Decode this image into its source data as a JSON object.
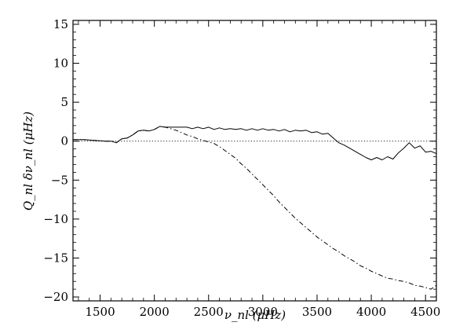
{
  "chart_data": {
    "type": "line",
    "xlabel": "ν_nl (μHz)",
    "ylabel": "Q_nl δν_nl (μHz)",
    "xlim": [
      1250,
      4600
    ],
    "ylim": [
      -20.5,
      15.5
    ],
    "x_ticks": [
      1500,
      2000,
      2500,
      3000,
      3500,
      4000,
      4500
    ],
    "y_ticks": [
      15,
      10,
      5,
      0,
      -5,
      -10,
      -15,
      -20
    ],
    "x_tick_labels": [
      "1500",
      "2000",
      "2500",
      "3000",
      "3500",
      "4000",
      "4500"
    ],
    "y_tick_labels": [
      "15",
      "10",
      "5",
      "0",
      "−5",
      "−10",
      "−15",
      "−20"
    ],
    "grid": false,
    "legend": "none",
    "reference_line": {
      "y": 0,
      "style": "dotted"
    },
    "series": [
      {
        "style": "solid",
        "x": [
          1250,
          1350,
          1450,
          1550,
          1600,
          1650,
          1700,
          1750,
          1800,
          1850,
          1900,
          1950,
          2000,
          2050,
          2100,
          2150,
          2200,
          2250,
          2300,
          2350,
          2400,
          2450,
          2500,
          2550,
          2600,
          2650,
          2700,
          2750,
          2800,
          2850,
          2900,
          2950,
          3000,
          3050,
          3100,
          3150,
          3200,
          3250,
          3300,
          3350,
          3400,
          3450,
          3500,
          3550,
          3600,
          3650,
          3700,
          3750,
          3800,
          3850,
          3900,
          3950,
          4000,
          4050,
          4100,
          4150,
          4200,
          4250,
          4300,
          4350,
          4400,
          4450,
          4500,
          4550,
          4600
        ],
        "y": [
          0.2,
          0.2,
          0.1,
          0.0,
          0.0,
          -0.2,
          0.3,
          0.4,
          0.8,
          1.3,
          1.4,
          1.3,
          1.5,
          1.9,
          1.8,
          1.8,
          1.8,
          1.8,
          1.8,
          1.6,
          1.8,
          1.6,
          1.8,
          1.5,
          1.7,
          1.5,
          1.6,
          1.5,
          1.6,
          1.4,
          1.6,
          1.4,
          1.6,
          1.4,
          1.5,
          1.3,
          1.5,
          1.2,
          1.4,
          1.3,
          1.4,
          1.1,
          1.2,
          0.9,
          1.0,
          0.4,
          -0.2,
          -0.5,
          -0.9,
          -1.3,
          -1.7,
          -2.1,
          -2.4,
          -2.1,
          -2.4,
          -2.0,
          -2.3,
          -1.5,
          -0.9,
          -0.2,
          -0.9,
          -0.6,
          -1.4,
          -1.3,
          -1.6
        ]
      },
      {
        "style": "dash-dot",
        "x": [
          1250,
          1350,
          1450,
          1550,
          1600,
          1650,
          1700,
          1750,
          1800,
          1850,
          1900,
          1950,
          2000,
          2050,
          2100,
          2150,
          2200,
          2250,
          2300,
          2350,
          2400,
          2450,
          2500,
          2550,
          2600,
          2650,
          2700,
          2750,
          2800,
          2850,
          2900,
          2950,
          3000,
          3050,
          3100,
          3150,
          3200,
          3250,
          3300,
          3350,
          3400,
          3450,
          3500,
          3550,
          3600,
          3650,
          3700,
          3750,
          3800,
          3850,
          3900,
          3950,
          4000,
          4050,
          4100,
          4150,
          4200,
          4250,
          4300,
          4350,
          4400,
          4450,
          4500,
          4550,
          4600
        ],
        "y": [
          0.2,
          0.2,
          0.1,
          0.0,
          0.0,
          -0.2,
          0.3,
          0.4,
          0.8,
          1.3,
          1.4,
          1.3,
          1.5,
          1.9,
          1.8,
          1.6,
          1.4,
          1.1,
          0.8,
          0.6,
          0.3,
          0.1,
          -0.1,
          -0.3,
          -0.7,
          -1.2,
          -1.7,
          -2.2,
          -2.9,
          -3.5,
          -4.2,
          -4.9,
          -5.6,
          -6.3,
          -7.0,
          -7.8,
          -8.5,
          -9.2,
          -9.9,
          -10.5,
          -11.1,
          -11.7,
          -12.3,
          -12.8,
          -13.3,
          -13.8,
          -14.2,
          -14.7,
          -15.1,
          -15.5,
          -16.0,
          -16.3,
          -16.7,
          -17.0,
          -17.3,
          -17.6,
          -17.7,
          -17.9,
          -18.0,
          -18.2,
          -18.5,
          -18.6,
          -18.8,
          -19.0,
          -18.5
        ]
      }
    ]
  }
}
